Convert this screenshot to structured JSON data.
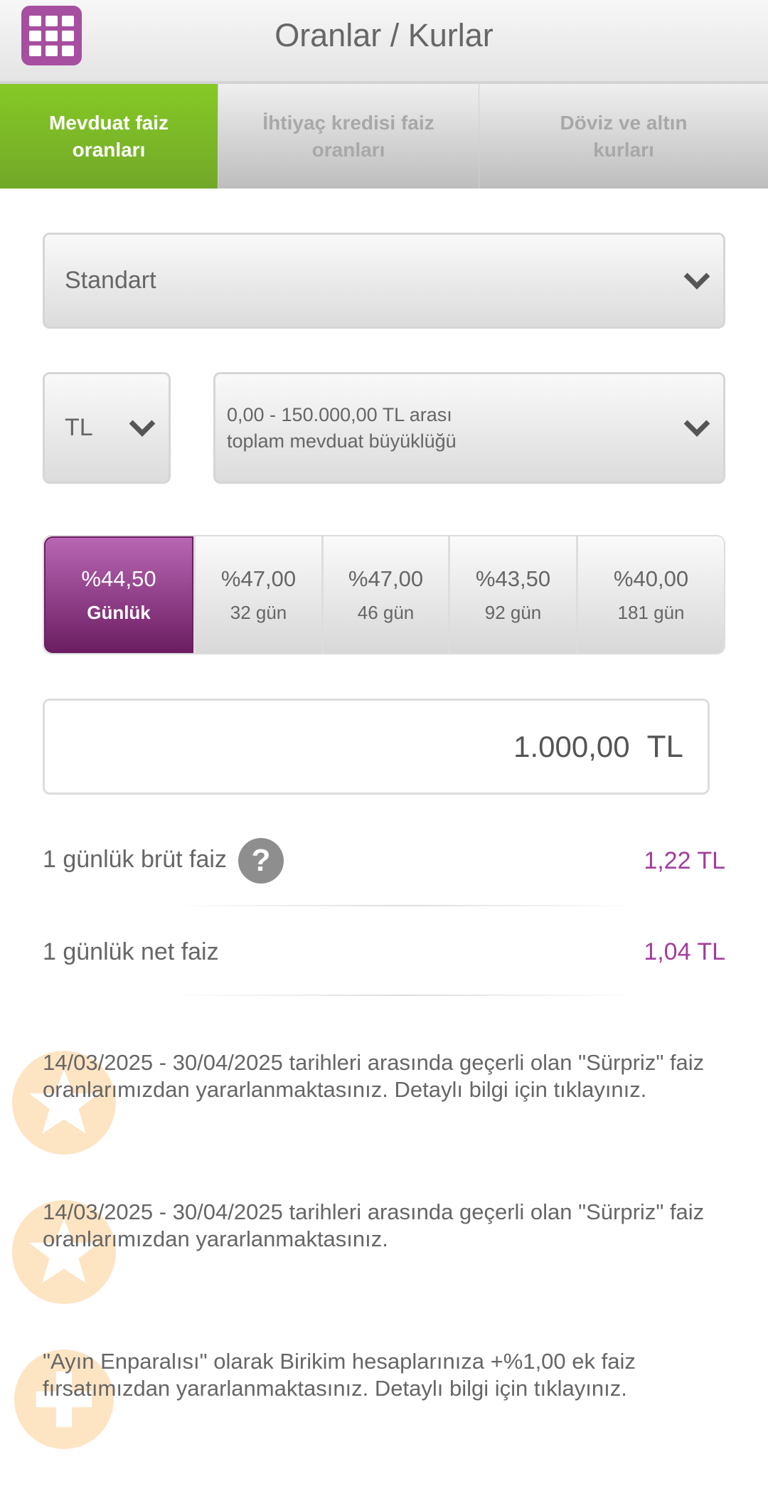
{
  "header": {
    "title": "Oranlar / Kurlar",
    "menu_icon": "grid-icon"
  },
  "tabs": [
    {
      "label": "Mevduat faiz oranları",
      "active": true
    },
    {
      "label": "İhtiyaç kredisi faiz oranları",
      "active": false
    },
    {
      "label": "Döviz ve altın kurları",
      "active": false
    }
  ],
  "product_select": {
    "value": "Standart"
  },
  "currency_select": {
    "value": "TL"
  },
  "range_select": {
    "line1": "0,00 - 150.000,00 TL arası",
    "line2": "toplam mevduat büyüklüğü"
  },
  "rates": [
    {
      "rate": "%44,50",
      "term": "Günlük",
      "selected": true
    },
    {
      "rate": "%47,00",
      "term": "32 gün",
      "selected": false
    },
    {
      "rate": "%47,00",
      "term": "46 gün",
      "selected": false
    },
    {
      "rate": "%43,50",
      "term": "92 gün",
      "selected": false
    },
    {
      "rate": "%40,00",
      "term": "181 gün",
      "selected": false
    }
  ],
  "amount": {
    "value": "1.000,00",
    "currency": "TL"
  },
  "results": [
    {
      "label": "1 günlük brüt faiz",
      "value": "1,22 TL",
      "help": "?"
    },
    {
      "label": "1 günlük net faiz",
      "value": "1,04 TL"
    }
  ],
  "notes": [
    {
      "text": "14/03/2025 - 30/04/2025 tarihleri arasında geçerli olan \"Sürpriz\" faiz oranlarımızdan yararlanmaktasınız. Detaylı bilgi için tıklayınız.",
      "icon": "star-icon"
    },
    {
      "text": "14/03/2025 - 30/04/2025 tarihleri arasında geçerli olan \"Sürpriz\" faiz oranlarımızdan yararlanmaktasınız.",
      "icon": "star-icon"
    },
    {
      "text": "\"Ayın Enparalısı\" olarak Birikim hesaplarınıza +%1,00 ek faiz fırsatımızdan yararlanmaktasınız. Detaylı bilgi için tıklayınız.",
      "icon": "plus-icon"
    }
  ],
  "colors": {
    "accent_green": "#7dbb24",
    "accent_purple": "#a23d9b",
    "badge": "#fde3c0"
  }
}
